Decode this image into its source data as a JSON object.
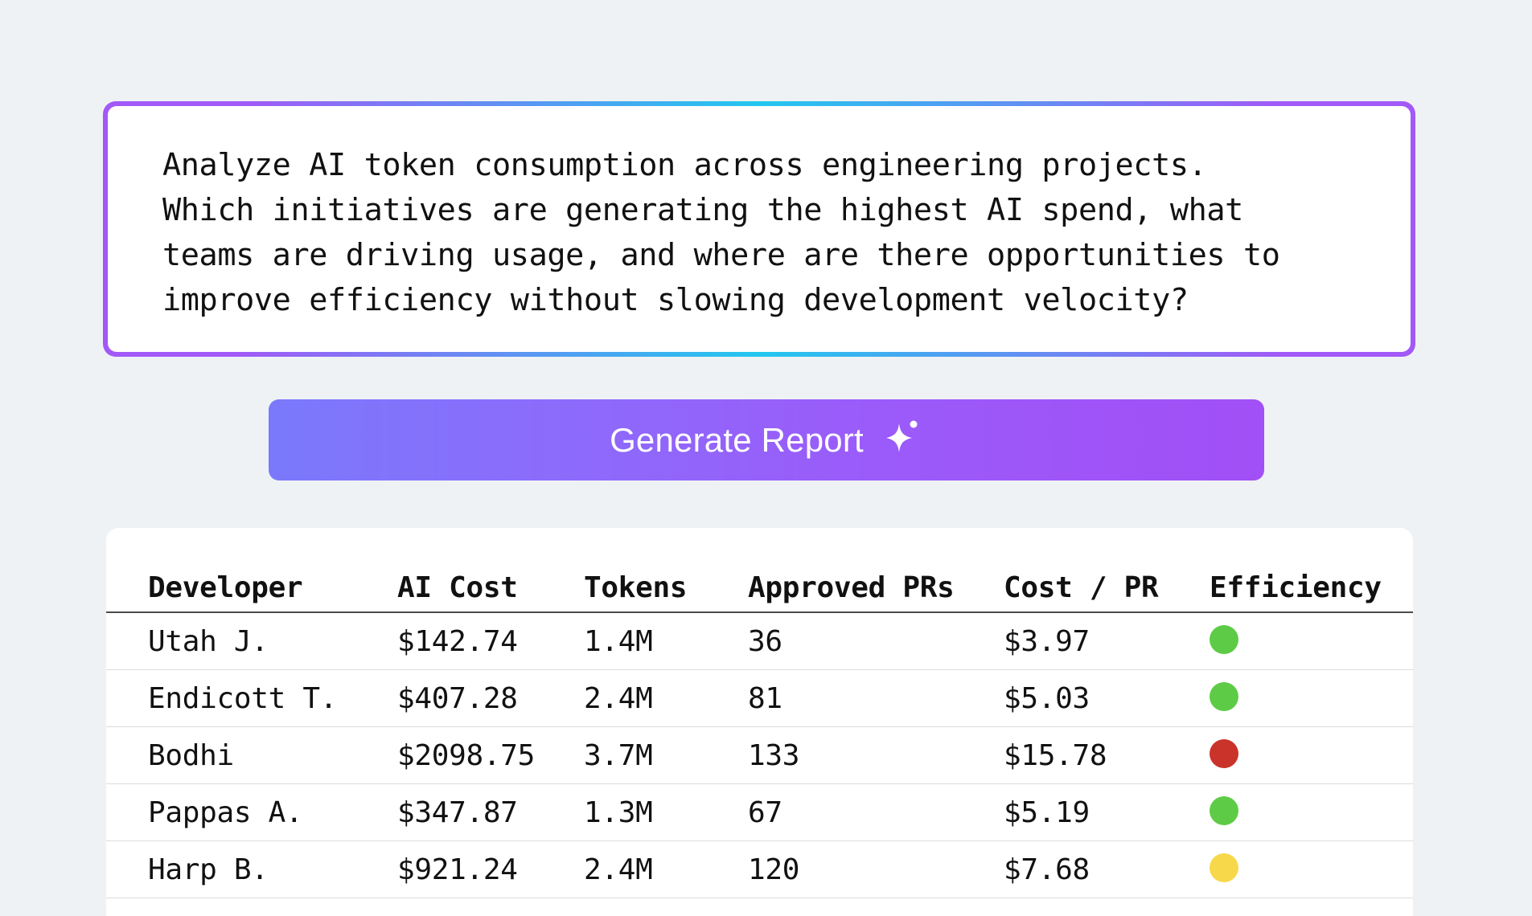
{
  "prompt": {
    "text": "Analyze AI token consumption across engineering projects.\nWhich initiatives are generating the highest AI spend, what\nteams are driving usage, and where are there opportunities to\nimprove efficiency without slowing development velocity?"
  },
  "generate_button": {
    "label": "Generate Report",
    "icon": "sparkle-icon"
  },
  "table": {
    "headers": [
      "Developer",
      "AI Cost",
      "Tokens",
      "Approved PRs",
      "Cost / PR",
      "Efficiency"
    ],
    "rows": [
      {
        "developer": "Utah J.",
        "ai_cost": "$142.74",
        "tokens": "1.4M",
        "approved_prs": "36",
        "cost_per_pr": "$3.97",
        "efficiency": "good",
        "color": "#5ecb47"
      },
      {
        "developer": "Endicott T.",
        "ai_cost": "$407.28",
        "tokens": "2.4M",
        "approved_prs": "81",
        "cost_per_pr": "$5.03",
        "efficiency": "good",
        "color": "#5ecb47"
      },
      {
        "developer": "Bodhi",
        "ai_cost": "$2098.75",
        "tokens": "3.7M",
        "approved_prs": "133",
        "cost_per_pr": "$15.78",
        "efficiency": "poor",
        "color": "#c9332a"
      },
      {
        "developer": "Pappas A.",
        "ai_cost": "$347.87",
        "tokens": "1.3M",
        "approved_prs": "67",
        "cost_per_pr": "$5.19",
        "efficiency": "good",
        "color": "#5ecb47"
      },
      {
        "developer": "Harp B.",
        "ai_cost": "$921.24",
        "tokens": "2.4M",
        "approved_prs": "120",
        "cost_per_pr": "$7.68",
        "efficiency": "moderate",
        "color": "#f7d84a"
      }
    ]
  },
  "colors": {
    "background": "#eff2f5",
    "button_gradient_start": "#7b79fb",
    "button_gradient_end": "#a14ff6",
    "frame_purple": "#a259f7",
    "frame_cyan": "#22c7ee"
  }
}
